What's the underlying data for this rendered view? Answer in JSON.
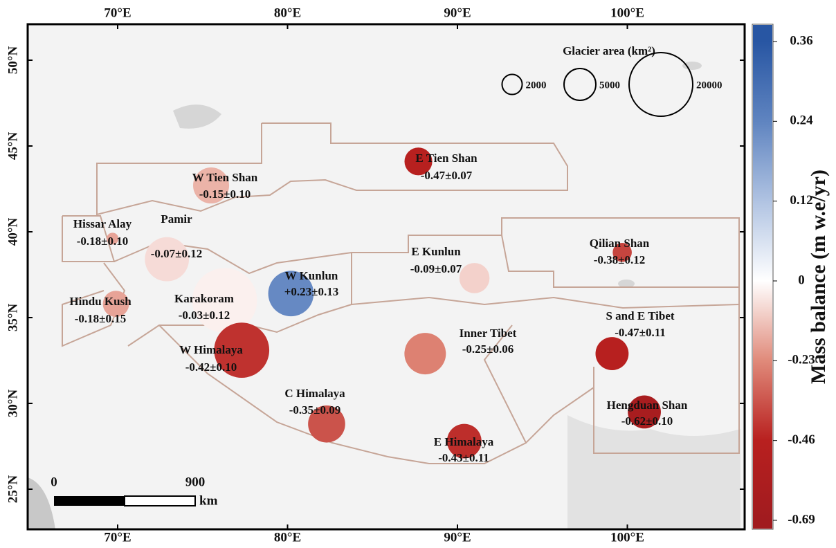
{
  "map": {
    "lon_ticks": [
      {
        "value": 70,
        "label": "70°E"
      },
      {
        "value": 80,
        "label": "80°E"
      },
      {
        "value": 90,
        "label": "90°E"
      },
      {
        "value": 100,
        "label": "100°E"
      }
    ],
    "lat_ticks": [
      {
        "value": 50,
        "label": "50°N"
      },
      {
        "value": 45,
        "label": "45°N"
      },
      {
        "value": 40,
        "label": "40°N"
      },
      {
        "value": 35,
        "label": "35°N"
      },
      {
        "value": 30,
        "label": "30°N"
      },
      {
        "value": 25,
        "label": "25°N"
      }
    ],
    "size_legend": {
      "title": "Glacier area (km²)",
      "sizes": [
        2000,
        5000,
        20000
      ]
    },
    "scale_bar": {
      "ticks": [
        0,
        900
      ],
      "unit": "km"
    },
    "colorbar": {
      "label": "Mass balance (m w.e/yr)",
      "ticks": [
        0.36,
        0.24,
        0.12,
        0,
        -0.23,
        -0.46,
        -0.69
      ],
      "colors": [
        "#2856a3",
        "#5f84c0",
        "#b0c3e2",
        "#ffffff",
        "#e08a7a",
        "#b8201f",
        "#a11b1f"
      ]
    },
    "regions": [
      {
        "name": "Hissar Alay",
        "lon": 69.7,
        "lat": 39.6,
        "area": 700,
        "mass_balance": -0.18,
        "error": 0.1,
        "value_label": "-0.18±0.10"
      },
      {
        "name": "W Tien Shan",
        "lon": 75.5,
        "lat": 42.7,
        "area": 6400,
        "mass_balance": -0.15,
        "error": 0.1,
        "value_label": "-0.15±0.10"
      },
      {
        "name": "E Tien Shan",
        "lon": 87.7,
        "lat": 44.1,
        "area": 3800,
        "mass_balance": -0.47,
        "error": 0.07,
        "value_label": "-0.47±0.07"
      },
      {
        "name": "Pamir",
        "lon": 72.9,
        "lat": 38.4,
        "area": 9600,
        "mass_balance": -0.07,
        "error": 0.12,
        "value_label": "-0.07±0.12"
      },
      {
        "name": "Karakoram",
        "lon": 76.3,
        "lat": 36.0,
        "area": 20700,
        "mass_balance": -0.03,
        "error": 0.12,
        "value_label": "-0.03±0.12"
      },
      {
        "name": "W Kunlun",
        "lon": 80.2,
        "lat": 36.4,
        "area": 10200,
        "mass_balance": 0.23,
        "error": 0.13,
        "value_label": "+0.23±0.13"
      },
      {
        "name": "E Kunlun",
        "lon": 91.0,
        "lat": 37.3,
        "area": 4500,
        "mass_balance": -0.09,
        "error": 0.07,
        "value_label": "-0.09±0.07"
      },
      {
        "name": "Qilian Shan",
        "lon": 99.7,
        "lat": 38.8,
        "area": 1800,
        "mass_balance": -0.38,
        "error": 0.12,
        "value_label": "-0.38±0.12"
      },
      {
        "name": "Hindu Kush",
        "lon": 69.9,
        "lat": 35.8,
        "area": 3400,
        "mass_balance": -0.18,
        "error": 0.15,
        "value_label": "-0.18±0.15"
      },
      {
        "name": "W Himalaya",
        "lon": 77.3,
        "lat": 33.1,
        "area": 15000,
        "mass_balance": -0.42,
        "error": 0.1,
        "value_label": "-0.42±0.10"
      },
      {
        "name": "Inner Tibet",
        "lon": 88.1,
        "lat": 32.9,
        "area": 8500,
        "mass_balance": -0.25,
        "error": 0.06,
        "value_label": "-0.25±0.06"
      },
      {
        "name": "S and E Tibet",
        "lon": 99.1,
        "lat": 32.9,
        "area": 5400,
        "mass_balance": -0.47,
        "error": 0.11,
        "value_label": "-0.47±0.11"
      },
      {
        "name": "C Himalaya",
        "lon": 82.3,
        "lat": 28.8,
        "area": 6800,
        "mass_balance": -0.35,
        "error": 0.09,
        "value_label": "-0.35±0.09"
      },
      {
        "name": "E Himalaya",
        "lon": 90.4,
        "lat": 27.8,
        "area": 5900,
        "mass_balance": -0.43,
        "error": 0.11,
        "value_label": "-0.43±0.11"
      },
      {
        "name": "Hengduan Shan",
        "lon": 101.0,
        "lat": 29.5,
        "area": 5400,
        "mass_balance": -0.62,
        "error": 0.1,
        "value_label": "-0.62±0.10"
      }
    ]
  }
}
